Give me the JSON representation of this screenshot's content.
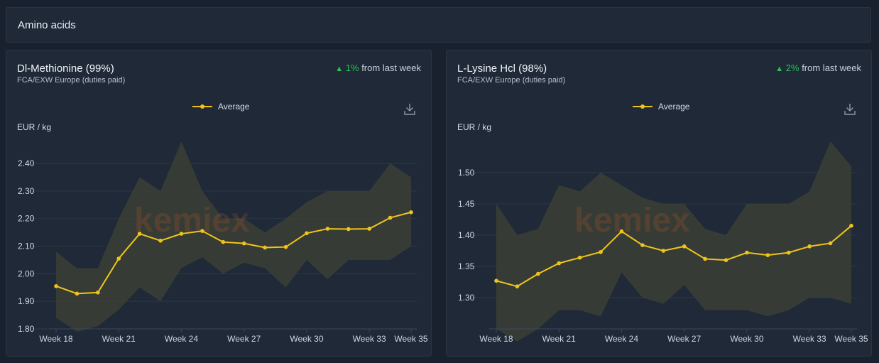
{
  "section": {
    "title": "Amino acids"
  },
  "legend_label": "Average",
  "unit_label": "EUR / kg",
  "colors": {
    "line": "#f0c419",
    "band": "#3b3f35",
    "grid": "#2c3748",
    "up": "#2fbf5b"
  },
  "icons": {
    "download": "download-icon",
    "up_arrow": "up-triangle-icon"
  },
  "chart_data": [
    {
      "type": "line",
      "title": "Dl-Methionine (99%)",
      "subtitle": "FCA/EXW Europe (duties paid)",
      "change": {
        "arrow": "▲",
        "pct": "1%",
        "text": " from last week"
      },
      "ylabel": "EUR / kg",
      "ylim": [
        1.8,
        2.48
      ],
      "yticks": [
        1.8,
        1.9,
        2.0,
        2.1,
        2.2,
        2.3,
        2.4
      ],
      "ytick_labels": [
        "1.80",
        "1.90",
        "2.00",
        "2.10",
        "2.20",
        "2.30",
        "2.40"
      ],
      "xtick_indices": [
        0,
        3,
        6,
        9,
        12,
        15,
        17
      ],
      "xtick_labels": [
        "Week 18",
        "Week 21",
        "Week 24",
        "Week 27",
        "Week 30",
        "Week 33",
        "Week 35"
      ],
      "x": [
        18,
        19,
        20,
        21,
        22,
        23,
        24,
        25,
        26,
        27,
        28,
        29,
        30,
        31,
        32,
        33,
        34,
        35
      ],
      "series": [
        {
          "name": "Average",
          "values": [
            1.955,
            1.928,
            1.932,
            2.055,
            2.145,
            2.12,
            2.145,
            2.155,
            2.115,
            2.11,
            2.095,
            2.097,
            2.147,
            2.163,
            2.162,
            2.163,
            2.203,
            2.223
          ]
        },
        {
          "name": "Max",
          "values": [
            2.08,
            2.02,
            2.02,
            2.2,
            2.35,
            2.3,
            2.48,
            2.3,
            2.2,
            2.2,
            2.15,
            2.2,
            2.26,
            2.3,
            2.3,
            2.3,
            2.4,
            2.35
          ]
        },
        {
          "name": "Min",
          "values": [
            1.84,
            1.79,
            1.81,
            1.87,
            1.95,
            1.9,
            2.02,
            2.06,
            2.0,
            2.04,
            2.02,
            1.95,
            2.05,
            1.98,
            2.05,
            2.05,
            2.05,
            2.1
          ]
        }
      ]
    },
    {
      "type": "line",
      "title": "L-Lysine Hcl (98%)",
      "subtitle": "FCA/EXW Europe (duties paid)",
      "change": {
        "arrow": "▲",
        "pct": "2%",
        "text": " from last week"
      },
      "ylabel": "EUR / kg",
      "ylim": [
        1.25,
        1.55
      ],
      "yticks": [
        1.3,
        1.35,
        1.4,
        1.45,
        1.5
      ],
      "ytick_labels": [
        "1.30",
        "1.35",
        "1.40",
        "1.45",
        "1.50"
      ],
      "xtick_indices": [
        0,
        3,
        6,
        9,
        12,
        15,
        17
      ],
      "xtick_labels": [
        "Week 18",
        "Week 21",
        "Week 24",
        "Week 27",
        "Week 30",
        "Week 33",
        "Week 35"
      ],
      "x": [
        18,
        19,
        20,
        21,
        22,
        23,
        24,
        25,
        26,
        27,
        28,
        29,
        30,
        31,
        32,
        33,
        34,
        35
      ],
      "series": [
        {
          "name": "Average",
          "values": [
            1.327,
            1.318,
            1.338,
            1.355,
            1.364,
            1.373,
            1.406,
            1.384,
            1.375,
            1.382,
            1.362,
            1.36,
            1.372,
            1.368,
            1.372,
            1.382,
            1.387,
            1.415
          ]
        },
        {
          "name": "Max",
          "values": [
            1.45,
            1.4,
            1.41,
            1.48,
            1.47,
            1.5,
            1.48,
            1.46,
            1.45,
            1.45,
            1.41,
            1.4,
            1.45,
            1.45,
            1.45,
            1.47,
            1.55,
            1.51
          ]
        },
        {
          "name": "Min",
          "values": [
            1.25,
            1.23,
            1.25,
            1.28,
            1.28,
            1.27,
            1.34,
            1.3,
            1.29,
            1.32,
            1.28,
            1.28,
            1.28,
            1.27,
            1.28,
            1.3,
            1.3,
            1.29
          ]
        }
      ]
    }
  ]
}
